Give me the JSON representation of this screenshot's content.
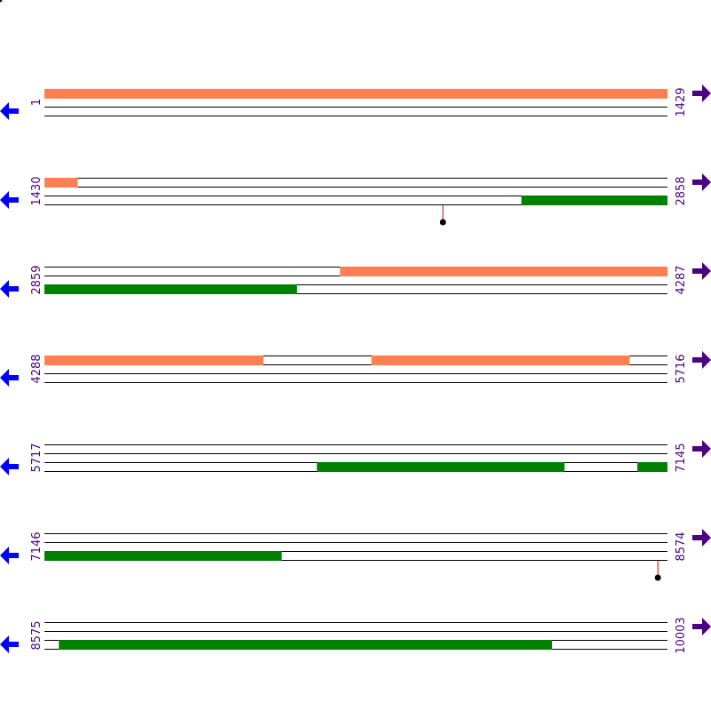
{
  "colors": {
    "forward_feature": "#ff7f50",
    "reverse_feature": "#008000",
    "track_line": "#000000",
    "site_stem": "#cc0000",
    "site_dot": "#000000",
    "left_arrow": "#0000ff",
    "right_arrow": "#4b0082",
    "number_text": "#4b0082"
  },
  "icons": {
    "left": "arrow-left-icon",
    "right": "arrow-right-icon"
  },
  "rows": [
    {
      "start": "1",
      "end": "1429",
      "features": [
        {
          "track": 1,
          "from": 1,
          "to": 1429,
          "kind": "forward"
        }
      ],
      "sites": []
    },
    {
      "start": "1430",
      "end": "2858",
      "features": [
        {
          "track": 1,
          "from": 1430,
          "to": 1505,
          "kind": "forward"
        },
        {
          "track": 3,
          "from": 2524,
          "to": 2858,
          "kind": "reverse"
        }
      ],
      "sites": [
        2344
      ]
    },
    {
      "start": "2859",
      "end": "4287",
      "features": [
        {
          "track": 1,
          "from": 3537,
          "to": 4287,
          "kind": "forward"
        },
        {
          "track": 3,
          "from": 2859,
          "to": 3437,
          "kind": "reverse"
        }
      ],
      "sites": []
    },
    {
      "start": "4288",
      "end": "5716",
      "features": [
        {
          "track": 1,
          "from": 4288,
          "to": 4789,
          "kind": "forward"
        },
        {
          "track": 1,
          "from": 5038,
          "to": 5629,
          "kind": "forward"
        }
      ],
      "sites": []
    },
    {
      "start": "5717",
      "end": "7145",
      "features": [
        {
          "track": 3,
          "from": 6342,
          "to": 6909,
          "kind": "reverse"
        },
        {
          "track": 3,
          "from": 7077,
          "to": 7145,
          "kind": "reverse"
        }
      ],
      "sites": []
    },
    {
      "start": "7146",
      "end": "8574",
      "features": [
        {
          "track": 3,
          "from": 7146,
          "to": 7689,
          "kind": "reverse"
        }
      ],
      "sites": [
        8553
      ]
    },
    {
      "start": "8575",
      "end": "10003",
      "features": [
        {
          "track": 3,
          "from": 8608,
          "to": 9738,
          "kind": "reverse"
        }
      ],
      "sites": []
    }
  ]
}
